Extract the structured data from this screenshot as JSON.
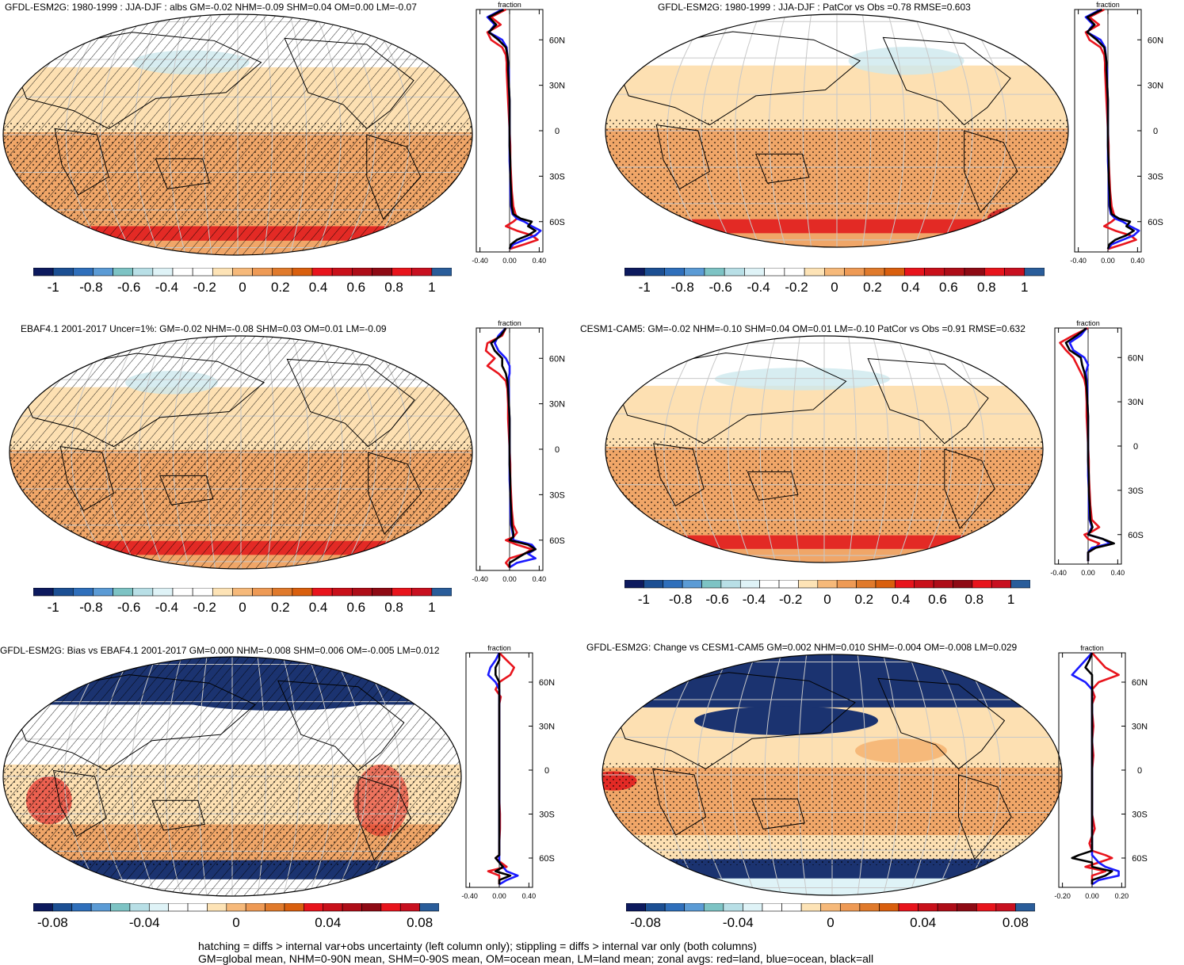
{
  "footer": {
    "line1": "hatching = diffs > internal var+obs uncertainty (left column only); stippling = diffs > internal var only (both columns)",
    "line2": "GM=global mean, NHM=0-90N mean, SHM=0-90S mean, OM=ocean mean, LM=land mean; zonal avgs: red=land, blue=ocean, black=all"
  },
  "colors": {
    "land": "#e8141c",
    "ocean": "#1a1aff",
    "all": "#000000",
    "palette": [
      "#0d1a5e",
      "#1c4f93",
      "#2f6fbb",
      "#5b9bd5",
      "#7dc3c4",
      "#b8dfe6",
      "#dff3f7",
      "#ffffff",
      "#ffffff",
      "#fde3b6",
      "#f6b97a",
      "#ee9a55",
      "#e07a2c",
      "#d95f0e",
      "#e8141c",
      "#c9101a",
      "#ae0d18",
      "#8e0a14",
      "#e8141c",
      "#c81020",
      "#2a5d9a"
    ],
    "red_band": "#e32a25",
    "band_mid": "#f0a668",
    "band_north": "#fde0b2",
    "band_polar": "#ffffff",
    "bias_blue": "#1b3370"
  },
  "chart_data": [
    {
      "id": "p1",
      "type": "heatmap",
      "title": "GFDL-ESM2G: 1980-1999 : JJA-DJF : albs GM=-0.02 NHM=-0.09 SHM=0.04 OM=0.00 LM=-0.07",
      "colorbar_ticks": [
        "-1",
        "-0.8",
        "-0.6",
        "-0.4",
        "-0.2",
        "0",
        "0.2",
        "0.4",
        "0.6",
        "0.8",
        "1"
      ],
      "zonal": {
        "title": "fraction",
        "xticks": [
          "-0.40",
          "0.00",
          "0.40"
        ],
        "xlim": [
          -0.45,
          0.45
        ],
        "yticks": [
          "60N",
          "30N",
          "0",
          "30S",
          "60S"
        ],
        "lat": [
          80,
          75,
          70,
          65,
          60,
          55,
          50,
          45,
          40,
          30,
          20,
          10,
          0,
          -10,
          -20,
          -30,
          -40,
          -50,
          -55,
          -58,
          -60,
          -63,
          -66,
          -69,
          -72,
          -75,
          -78
        ],
        "land": [
          -0.05,
          -0.25,
          -0.12,
          -0.3,
          -0.25,
          -0.1,
          -0.05,
          -0.04,
          -0.04,
          -0.03,
          -0.02,
          -0.01,
          0.0,
          0.01,
          0.01,
          0.02,
          0.03,
          0.05,
          0.08,
          0.1,
          0.05,
          -0.05,
          0.1,
          0.3,
          0.38,
          0.2,
          0.0
        ],
        "ocean": [
          -0.1,
          -0.3,
          -0.2,
          -0.28,
          -0.1,
          -0.04,
          -0.03,
          -0.02,
          -0.01,
          -0.01,
          0.0,
          0.0,
          0.0,
          0.0,
          0.0,
          0.01,
          0.01,
          0.02,
          0.04,
          0.1,
          0.2,
          0.3,
          0.42,
          0.35,
          0.2,
          0.05,
          0.0
        ],
        "all": [
          -0.08,
          -0.28,
          -0.18,
          -0.28,
          -0.15,
          -0.05,
          -0.03,
          -0.02,
          -0.02,
          -0.01,
          0.0,
          0.0,
          0.0,
          0.0,
          0.01,
          0.01,
          0.02,
          0.03,
          0.05,
          0.15,
          0.3,
          0.25,
          0.35,
          0.25,
          0.1,
          0.02,
          0.0
        ]
      }
    },
    {
      "id": "p2",
      "type": "heatmap",
      "title": "GFDL-ESM2G: 1980-1999 : JJA-DJF : PatCor vs Obs =0.78 RMSE=0.603",
      "colorbar_ticks": [
        "-1",
        "-0.8",
        "-0.6",
        "-0.4",
        "-0.2",
        "0",
        "0.2",
        "0.4",
        "0.6",
        "0.8",
        "1"
      ],
      "zonal": {
        "title": "fraction",
        "xticks": [
          "-0.40",
          "0.00",
          "0.40"
        ],
        "xlim": [
          -0.45,
          0.45
        ],
        "yticks": [
          "60N",
          "30N",
          "0",
          "30S",
          "60S"
        ],
        "lat": [
          80,
          75,
          70,
          65,
          60,
          55,
          50,
          45,
          40,
          30,
          20,
          10,
          0,
          -10,
          -20,
          -30,
          -40,
          -50,
          -55,
          -58,
          -60,
          -63,
          -66,
          -69,
          -72,
          -75,
          -78
        ],
        "land": [
          -0.05,
          -0.25,
          -0.12,
          -0.3,
          -0.25,
          -0.1,
          -0.05,
          -0.04,
          -0.04,
          -0.03,
          -0.02,
          -0.01,
          0.0,
          0.01,
          0.01,
          0.02,
          0.03,
          0.05,
          0.08,
          0.1,
          0.05,
          -0.05,
          0.1,
          0.3,
          0.38,
          0.2,
          0.0
        ],
        "ocean": [
          -0.1,
          -0.3,
          -0.2,
          -0.28,
          -0.1,
          -0.04,
          -0.03,
          -0.02,
          -0.01,
          -0.01,
          0.0,
          0.0,
          0.0,
          0.0,
          0.0,
          0.01,
          0.01,
          0.02,
          0.04,
          0.1,
          0.2,
          0.3,
          0.42,
          0.35,
          0.2,
          0.05,
          0.0
        ],
        "all": [
          -0.08,
          -0.28,
          -0.18,
          -0.28,
          -0.15,
          -0.05,
          -0.03,
          -0.02,
          -0.02,
          -0.01,
          0.0,
          0.0,
          0.0,
          0.0,
          0.01,
          0.01,
          0.02,
          0.03,
          0.05,
          0.15,
          0.3,
          0.25,
          0.35,
          0.25,
          0.1,
          0.02,
          0.0
        ]
      }
    },
    {
      "id": "p3",
      "type": "heatmap",
      "title": "EBAF4.1 2001-2017 Uncer=1%: GM=-0.02 NHM=-0.08 SHM=0.03 OM=0.01 LM=-0.09",
      "colorbar_ticks": [
        "-1",
        "-0.8",
        "-0.6",
        "-0.4",
        "-0.2",
        "0",
        "0.2",
        "0.4",
        "0.6",
        "0.8",
        "1"
      ],
      "zonal": {
        "title": "fraction",
        "xticks": [
          "-0.40",
          "0.00",
          "0.40"
        ],
        "xlim": [
          -0.45,
          0.45
        ],
        "yticks": [
          "60N",
          "30N",
          "0",
          "30S",
          "60S"
        ],
        "lat": [
          80,
          75,
          70,
          65,
          60,
          55,
          50,
          45,
          40,
          30,
          20,
          10,
          0,
          -10,
          -20,
          -30,
          -40,
          -50,
          -55,
          -58,
          -60,
          -63,
          -66,
          -69,
          -72,
          -75,
          -78
        ],
        "land": [
          -0.05,
          -0.1,
          -0.3,
          -0.32,
          -0.2,
          -0.3,
          -0.15,
          -0.05,
          -0.03,
          -0.02,
          -0.02,
          -0.01,
          0.0,
          0.01,
          0.01,
          0.02,
          0.03,
          0.05,
          0.1,
          0.05,
          -0.05,
          0.1,
          0.3,
          0.2,
          0.0,
          -0.05,
          0.0
        ],
        "ocean": [
          -0.05,
          -0.15,
          -0.2,
          -0.15,
          -0.05,
          0.0,
          0.0,
          -0.02,
          -0.01,
          -0.01,
          0.0,
          0.0,
          0.0,
          0.0,
          0.0,
          0.01,
          0.01,
          0.02,
          0.04,
          0.05,
          0.05,
          0.3,
          0.35,
          0.25,
          0.35,
          0.1,
          0.0
        ],
        "all": [
          -0.05,
          -0.12,
          -0.25,
          -0.2,
          -0.1,
          -0.1,
          -0.05,
          -0.03,
          -0.02,
          -0.01,
          0.0,
          0.0,
          0.0,
          0.0,
          0.01,
          0.01,
          0.02,
          0.03,
          0.05,
          0.05,
          0.0,
          0.25,
          0.35,
          0.2,
          0.1,
          0.0,
          0.0
        ]
      }
    },
    {
      "id": "p4",
      "type": "heatmap",
      "title": "CESM1-CAM5: GM=-0.02 NHM=-0.10 SHM=0.04 OM=0.01 LM=-0.10 PatCor vs Obs =0.91 RMSE=0.632",
      "colorbar_ticks": [
        "-1",
        "-0.8",
        "-0.6",
        "-0.4",
        "-0.2",
        "0",
        "0.2",
        "0.4",
        "0.6",
        "0.8",
        "1"
      ],
      "zonal": {
        "title": "fraction",
        "xticks": [
          "-0.40",
          "0.00",
          "0.40"
        ],
        "xlim": [
          -0.45,
          0.45
        ],
        "yticks": [
          "60N",
          "30N",
          "0",
          "30S",
          "60S"
        ],
        "lat": [
          80,
          75,
          70,
          65,
          60,
          55,
          50,
          45,
          40,
          30,
          20,
          10,
          0,
          -10,
          -20,
          -30,
          -40,
          -50,
          -55,
          -58,
          -60,
          -63,
          -66,
          -69,
          -72,
          -75,
          -78
        ],
        "land": [
          0.0,
          -0.2,
          -0.38,
          -0.3,
          -0.2,
          -0.15,
          -0.1,
          -0.05,
          -0.03,
          -0.02,
          -0.02,
          -0.01,
          0.0,
          0.01,
          0.01,
          0.02,
          0.03,
          0.05,
          0.15,
          0.05,
          -0.05,
          0.0,
          0.15,
          0.1,
          0.0,
          0.0,
          0.0
        ],
        "ocean": [
          -0.02,
          -0.1,
          -0.25,
          -0.2,
          -0.05,
          0.0,
          -0.03,
          -0.02,
          -0.01,
          -0.01,
          0.0,
          0.0,
          0.0,
          0.0,
          0.0,
          0.01,
          0.01,
          0.02,
          0.05,
          0.02,
          0.0,
          0.2,
          0.3,
          0.05,
          0.0,
          0.0,
          0.0
        ],
        "all": [
          -0.02,
          -0.15,
          -0.3,
          -0.25,
          -0.1,
          -0.08,
          -0.05,
          -0.03,
          -0.02,
          -0.01,
          0.0,
          0.0,
          0.0,
          0.0,
          0.01,
          0.01,
          0.02,
          0.03,
          0.06,
          0.03,
          0.0,
          0.2,
          0.35,
          0.1,
          0.0,
          0.0,
          0.0
        ]
      }
    },
    {
      "id": "p5",
      "type": "heatmap",
      "title": "GFDL-ESM2G: Bias vs EBAF4.1 2001-2017 GM=0.000 NHM=-0.008 SHM=0.006 OM=-0.005 LM=0.012",
      "colorbar_ticks": [
        "-0.08",
        "-0.04",
        "0",
        "0.04",
        "0.08"
      ],
      "zonal": {
        "title": "fraction",
        "xticks": [
          "-0.40",
          "0.00",
          "0.40"
        ],
        "xlim": [
          -0.45,
          0.45
        ],
        "yticks": [
          "60N",
          "30N",
          "0",
          "30S",
          "60S"
        ],
        "lat": [
          80,
          75,
          70,
          65,
          60,
          55,
          50,
          45,
          40,
          30,
          20,
          10,
          0,
          -10,
          -20,
          -30,
          -40,
          -50,
          -55,
          -58,
          -60,
          -63,
          -66,
          -69,
          -72,
          -75,
          -78
        ],
        "land": [
          0.0,
          0.1,
          0.2,
          0.15,
          0.0,
          -0.05,
          0.02,
          0.0,
          0.0,
          0.0,
          0.0,
          0.0,
          0.0,
          0.0,
          0.0,
          0.01,
          0.01,
          0.0,
          0.0,
          0.0,
          -0.05,
          0.02,
          0.1,
          -0.15,
          0.0,
          0.0,
          0.0
        ],
        "ocean": [
          0.0,
          -0.05,
          -0.12,
          -0.15,
          -0.05,
          0.0,
          0.0,
          0.0,
          0.0,
          0.0,
          0.0,
          0.0,
          0.0,
          0.0,
          0.0,
          0.0,
          0.0,
          0.0,
          0.0,
          0.0,
          0.0,
          0.0,
          0.05,
          0.1,
          0.25,
          0.1,
          0.0
        ],
        "all": [
          0.0,
          0.0,
          -0.05,
          -0.05,
          0.0,
          0.0,
          0.0,
          0.0,
          0.0,
          0.0,
          0.0,
          0.0,
          0.0,
          0.0,
          0.0,
          0.0,
          0.0,
          0.0,
          0.0,
          0.0,
          -0.05,
          0.0,
          0.05,
          -0.05,
          0.15,
          0.0,
          0.0
        ]
      }
    },
    {
      "id": "p6",
      "type": "heatmap",
      "title": "GFDL-ESM2G: Change vs CESM1-CAM5 GM=0.002 NHM=0.010 SHM=-0.004 OM=-0.008 LM=0.029",
      "colorbar_ticks": [
        "-0.08",
        "-0.04",
        "0",
        "0.04",
        "0.08"
      ],
      "zonal": {
        "title": "fraction",
        "xticks": [
          "-0.20",
          "0.00",
          "0.20"
        ],
        "xlim": [
          -0.25,
          0.25
        ],
        "yticks": [
          "60N",
          "30N",
          "0",
          "30S",
          "60S"
        ],
        "lat": [
          80,
          75,
          70,
          65,
          60,
          55,
          50,
          45,
          40,
          30,
          20,
          10,
          0,
          -10,
          -20,
          -30,
          -40,
          -50,
          -55,
          -58,
          -60,
          -63,
          -66,
          -69,
          -72,
          -75,
          -78
        ],
        "land": [
          0.0,
          0.05,
          0.1,
          0.2,
          0.05,
          0.0,
          0.02,
          0.0,
          0.0,
          0.01,
          0.0,
          0.01,
          0.0,
          0.0,
          0.0,
          0.0,
          0.02,
          -0.02,
          0.0,
          0.1,
          0.15,
          0.05,
          -0.05,
          0.1,
          0.0,
          0.0,
          0.0
        ],
        "ocean": [
          0.0,
          -0.05,
          -0.1,
          -0.15,
          -0.05,
          0.0,
          0.0,
          0.0,
          0.0,
          0.0,
          0.0,
          0.0,
          0.0,
          0.0,
          0.0,
          0.0,
          0.0,
          0.0,
          0.0,
          0.0,
          0.02,
          0.05,
          0.1,
          0.2,
          0.2,
          0.05,
          0.0
        ],
        "all": [
          0.0,
          -0.02,
          -0.05,
          0.0,
          0.0,
          0.0,
          0.0,
          0.0,
          0.0,
          0.0,
          0.0,
          0.0,
          0.0,
          0.0,
          0.0,
          0.0,
          0.0,
          0.0,
          0.0,
          -0.1,
          -0.15,
          0.0,
          0.0,
          0.15,
          0.1,
          0.0,
          0.0
        ]
      }
    }
  ]
}
